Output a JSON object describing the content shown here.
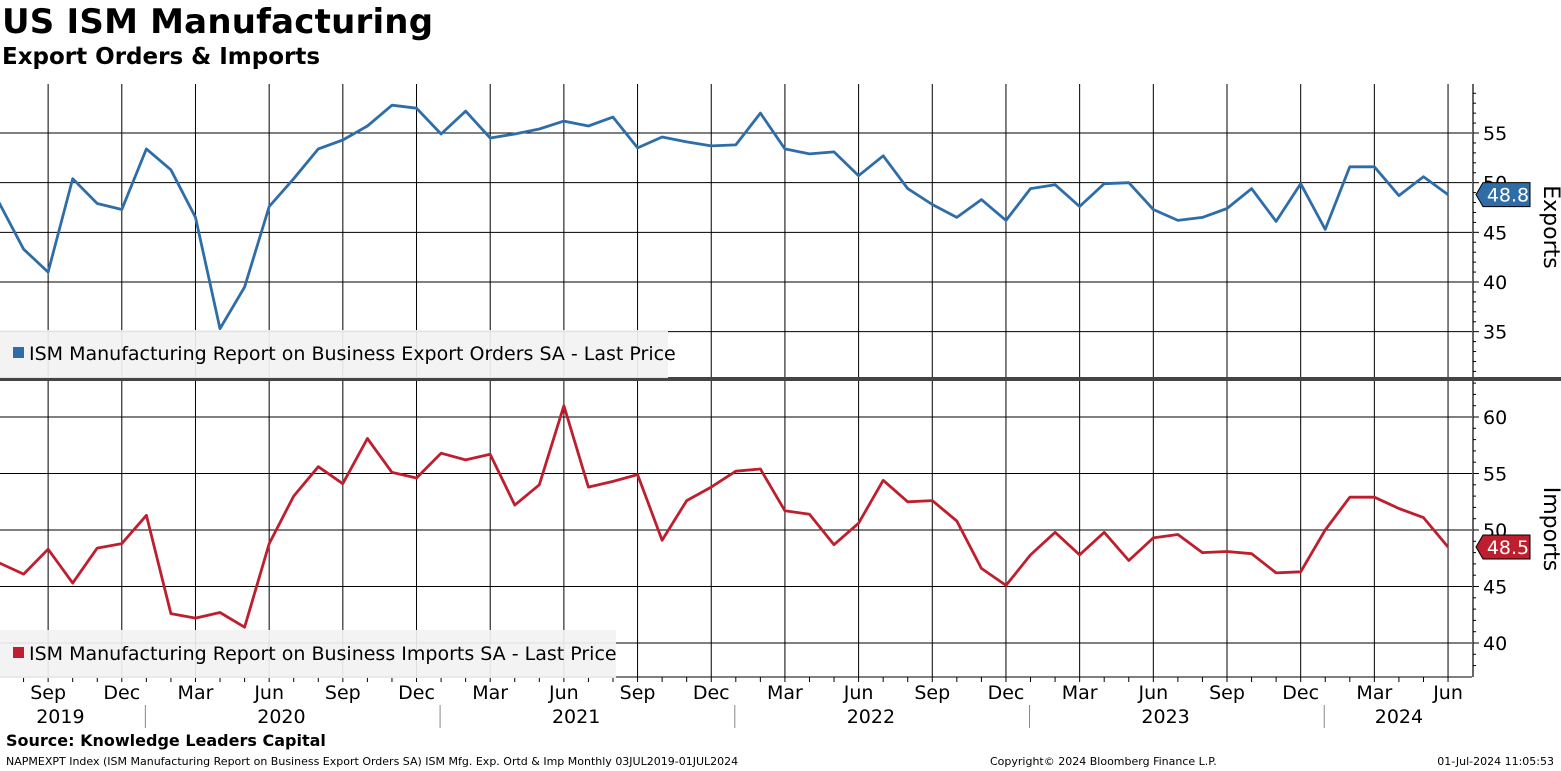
{
  "title": "US ISM Manufacturing",
  "subtitle": "Export Orders & Imports",
  "source": "Source: Knowledge Leaders Capital",
  "footer": {
    "left": "NAPMEXPT Index (ISM Manufacturing Report on Business Export Orders SA) ISM Mfg. Exp. Ortd & Imp  Monthly 03JUL2019-01JUL2024",
    "middle": "Copyright© 2024 Bloomberg Finance L.P.",
    "right": "01-Jul-2024 11:05:53"
  },
  "colors": {
    "exports": "#2E6DA8",
    "imports": "#BE1E2D"
  },
  "chart_data": [
    {
      "type": "line",
      "name": "exports-panel",
      "series_name": "ISM Manufacturing Report on Business Export Orders SA - Last Price",
      "ylabel": "Exports",
      "ylim": [
        31,
        60
      ],
      "yticks": [
        35,
        40,
        45,
        50,
        55
      ],
      "last_value_label": "48.8",
      "last_value": 48.8,
      "values": [
        48.0,
        43.3,
        41.0,
        50.4,
        47.9,
        47.3,
        53.4,
        51.3,
        46.5,
        35.3,
        39.5,
        47.6,
        50.4,
        53.4,
        54.3,
        55.7,
        57.8,
        57.5,
        54.9,
        57.2,
        54.5,
        54.9,
        55.4,
        56.2,
        55.7,
        56.6,
        53.5,
        54.6,
        54.1,
        53.7,
        53.8,
        57.0,
        53.4,
        52.9,
        53.1,
        50.7,
        52.7,
        49.4,
        47.8,
        46.5,
        48.3,
        46.2,
        49.4,
        49.8,
        47.6,
        49.9,
        50.0,
        47.3,
        46.2,
        46.5,
        47.4,
        49.4,
        46.1,
        49.9,
        45.3,
        51.6,
        51.6,
        48.7,
        50.6,
        48.8
      ]
    },
    {
      "type": "line",
      "name": "imports-panel",
      "series_name": "ISM Manufacturing Report on Business Imports SA - Last Price",
      "ylabel": "Imports",
      "ylim": [
        37,
        63
      ],
      "yticks": [
        40,
        45,
        50,
        55,
        60
      ],
      "last_value_label": "48.5",
      "last_value": 48.5,
      "values": [
        47.1,
        46.1,
        48.3,
        45.3,
        48.4,
        48.8,
        51.3,
        42.6,
        42.2,
        42.7,
        41.4,
        48.8,
        53.0,
        55.6,
        54.1,
        58.1,
        55.1,
        54.6,
        56.8,
        56.2,
        56.7,
        52.2,
        54.0,
        61.0,
        53.8,
        54.3,
        54.9,
        49.1,
        52.6,
        53.8,
        55.2,
        55.4,
        51.7,
        51.4,
        48.7,
        50.6,
        54.4,
        52.5,
        52.6,
        50.8,
        46.6,
        45.1,
        47.8,
        49.8,
        47.8,
        49.8,
        47.3,
        49.3,
        49.6,
        48.0,
        48.1,
        47.9,
        46.2,
        46.3,
        50.0,
        52.9,
        52.9,
        51.9,
        51.1,
        48.5
      ]
    }
  ],
  "x_axis": {
    "month_labels": [
      "Sep",
      "Dec",
      "Mar",
      "Jun",
      "Sep",
      "Dec",
      "Mar",
      "Jun",
      "Sep",
      "Dec",
      "Mar",
      "Jun",
      "Sep",
      "Dec",
      "Mar",
      "Jun",
      "Sep",
      "Dec",
      "Mar",
      "Jun"
    ],
    "year_labels": [
      "2019",
      "2020",
      "2021",
      "2022",
      "2023",
      "2024"
    ]
  }
}
